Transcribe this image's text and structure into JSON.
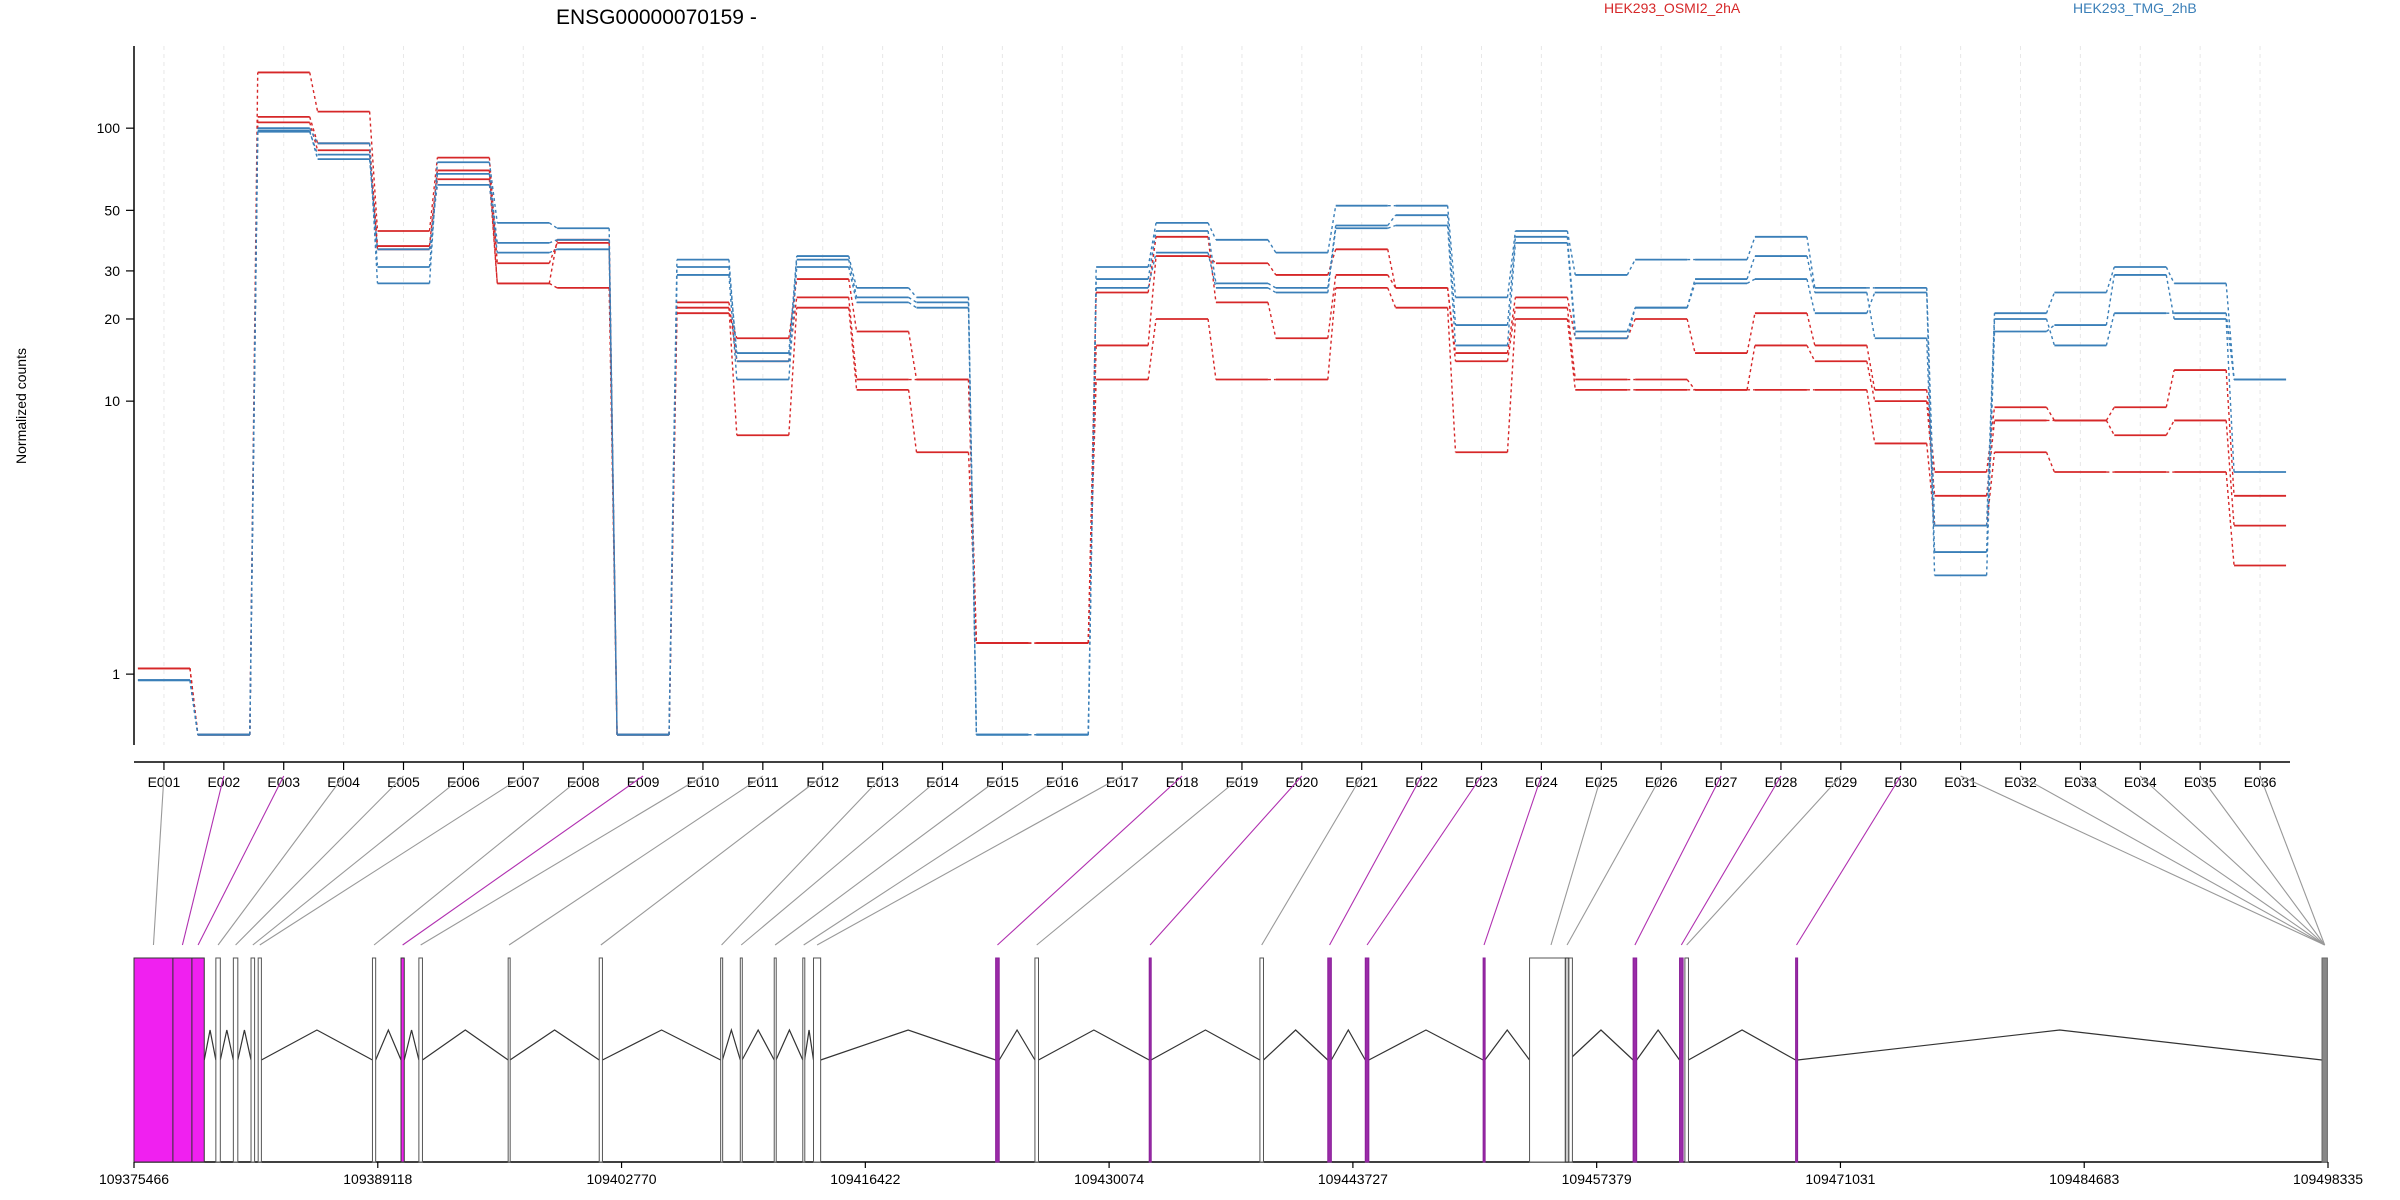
{
  "chart_data": {
    "type": "line",
    "title": "ENSG00000070159 -",
    "xlabel": "",
    "ylabel": "Normalized counts",
    "y_scale": "log",
    "ylim": [
      0.55,
      200
    ],
    "y_ticks": [
      1,
      10,
      20,
      30,
      50,
      100
    ],
    "grid": true,
    "legend_position": "top-right",
    "colors": {
      "HEK293_OSMI2_2hA": "#d62728",
      "HEK293_TMG_2hB": "#3a7fb8"
    },
    "categories": [
      "E001",
      "E002",
      "E003",
      "E004",
      "E005",
      "E006",
      "E007",
      "E008",
      "E009",
      "E010",
      "E011",
      "E012",
      "E013",
      "E014",
      "E015",
      "E016",
      "E017",
      "E018",
      "E019",
      "E020",
      "E021",
      "E022",
      "E023",
      "E024",
      "E025",
      "E026",
      "E027",
      "E028",
      "E029",
      "E030",
      "E031",
      "E032",
      "E033",
      "E034",
      "E035",
      "E036"
    ],
    "series": [
      {
        "name": "HEK293_OSMI2_2hA",
        "values": [
          1.05,
          0.6,
          160,
          115,
          42,
          78,
          32,
          38,
          0.6,
          23,
          14,
          24,
          12,
          12,
          1.3,
          1.3,
          16,
          34,
          32,
          29,
          36,
          26,
          15,
          24,
          17,
          20,
          15,
          21,
          16,
          11,
          5.5,
          9.5,
          8.5,
          9.5,
          13,
          4.5
        ]
      },
      {
        "name": "HEK293_OSMI2_2hA",
        "values": [
          1.05,
          0.6,
          110,
          88,
          37,
          70,
          27,
          39,
          0.6,
          21,
          17,
          28,
          18,
          12,
          1.3,
          1.3,
          25,
          40,
          23,
          17,
          29,
          26,
          14,
          22,
          12,
          12,
          11,
          16,
          14,
          10,
          4.5,
          8.5,
          8.5,
          7.5,
          8.5,
          3.5
        ]
      },
      {
        "name": "HEK293_OSMI2_2hA",
        "values": [
          1.05,
          0.6,
          105,
          83,
          36,
          65,
          27,
          26,
          0.6,
          22,
          7.5,
          22,
          11,
          6.5,
          1.3,
          1.3,
          12,
          20,
          12,
          12,
          26,
          22,
          6.5,
          20,
          11,
          11,
          11,
          11,
          11,
          7,
          3.5,
          6.5,
          5.5,
          5.5,
          5.5,
          2.5
        ]
      },
      {
        "name": "HEK293_TMG_2hB",
        "values": [
          0.95,
          0.6,
          100,
          88,
          27,
          75,
          45,
          43,
          0.6,
          31,
          15,
          34,
          26,
          24,
          0.6,
          0.6,
          31,
          45,
          39,
          35,
          52,
          52,
          24,
          42,
          29,
          33,
          33,
          40,
          26,
          26,
          3.5,
          21,
          25,
          31,
          27,
          12
        ]
      },
      {
        "name": "HEK293_TMG_2hB",
        "values": [
          0.95,
          0.6,
          97,
          80,
          31,
          68,
          38,
          39,
          0.6,
          33,
          14,
          33,
          24,
          23,
          0.6,
          0.6,
          28,
          42,
          27,
          26,
          44,
          48,
          19,
          40,
          18,
          22,
          28,
          34,
          25,
          17,
          2.8,
          20,
          16,
          21,
          21,
          12
        ]
      },
      {
        "name": "HEK293_TMG_2hB",
        "values": [
          0.95,
          0.6,
          98,
          77,
          36,
          62,
          35,
          36,
          0.6,
          29,
          12,
          31,
          23,
          22,
          0.6,
          0.6,
          26,
          35,
          26,
          25,
          43,
          44,
          16,
          38,
          17,
          22,
          27,
          28,
          21,
          25,
          2.3,
          18,
          19,
          29,
          20,
          5.5
        ]
      }
    ],
    "genomic_axis": {
      "tick_labels": [
        "109375466",
        "109389118",
        "109402770",
        "109416422",
        "109430074",
        "109443727",
        "109457379",
        "109471031",
        "109484683",
        "109498335"
      ],
      "range": [
        109375466,
        109498335
      ],
      "exon_starts": [
        109375466,
        109377646,
        109378710,
        109380050,
        109381030,
        109382020,
        109382420,
        109388820,
        109390420,
        109391420,
        109396420,
        109401520,
        109408320,
        109409420,
        109411320,
        109412920,
        109413520,
        109423720,
        109425920,
        109432320,
        109438520,
        109442320,
        109444420,
        109451020,
        109453620,
        109455620,
        109459420,
        109462020,
        109462320,
        109468520,
        109498000
      ],
      "exon_ends": [
        109377646,
        109378710,
        109379400,
        109380300,
        109381280,
        109382220,
        109382600,
        109389000,
        109390600,
        109391620,
        109396520,
        109401700,
        109408420,
        109409520,
        109411420,
        109413020,
        109413920,
        109423920,
        109426120,
        109432420,
        109438720,
        109442520,
        109444620,
        109451120,
        109456020,
        109455820,
        109459620,
        109462220,
        109462520,
        109468620,
        109498300
      ],
      "exon_highlighted": [
        false,
        true,
        true,
        false,
        false,
        false,
        false,
        false,
        true,
        false,
        false,
        false,
        false,
        false,
        false,
        false,
        false,
        true,
        false,
        true,
        false,
        true,
        true,
        true,
        false,
        false,
        true,
        true,
        false,
        true,
        false
      ],
      "exon_fill": [
        "magenta",
        "magenta",
        "magenta",
        "white",
        "white",
        "white",
        "white",
        "white",
        "magenta",
        "white",
        "white",
        "white",
        "white",
        "white",
        "white",
        "white",
        "white",
        "purple",
        "white",
        "purple",
        "white",
        "purple",
        "purple",
        "purple",
        "white",
        "lightgray",
        "purple",
        "purple",
        "white",
        "purple",
        "gray"
      ]
    }
  }
}
